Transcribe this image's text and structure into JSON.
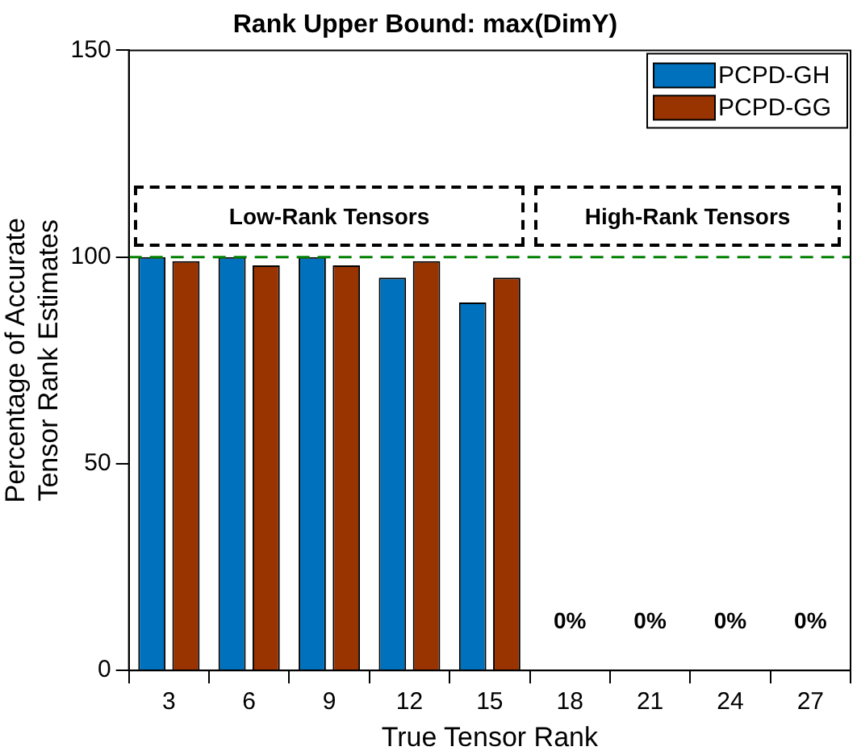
{
  "chart_data": {
    "type": "bar",
    "title": "Rank Upper Bound: max(DimY)",
    "xlabel": "True Tensor Rank",
    "ylabel": "Percentage of Accurate\nTensor Rank Estimates",
    "categories": [
      "3",
      "6",
      "9",
      "12",
      "15",
      "18",
      "21",
      "24",
      "27"
    ],
    "series": [
      {
        "name": "PCPD-GH",
        "color": "#0072bd",
        "values": [
          100,
          100,
          100,
          95,
          89,
          0,
          0,
          0,
          0
        ],
        "value_labels": [
          null,
          null,
          null,
          null,
          null,
          "0%",
          "0%",
          "0%",
          "0%"
        ]
      },
      {
        "name": "PCPD-GG",
        "color": "#993300",
        "values": [
          99,
          98,
          98,
          99,
          95,
          0,
          0,
          0,
          0
        ]
      }
    ],
    "ylim": [
      0,
      150
    ],
    "yticks": [
      0,
      50,
      100,
      150
    ],
    "grid": false,
    "legend": "top right",
    "ref_lines": [
      {
        "axis": "y",
        "value": 100,
        "color": "#008000",
        "line_style": "dashed"
      }
    ],
    "annotations": [
      "Low-Rank Tensors",
      "High-Rank Tensors"
    ]
  }
}
